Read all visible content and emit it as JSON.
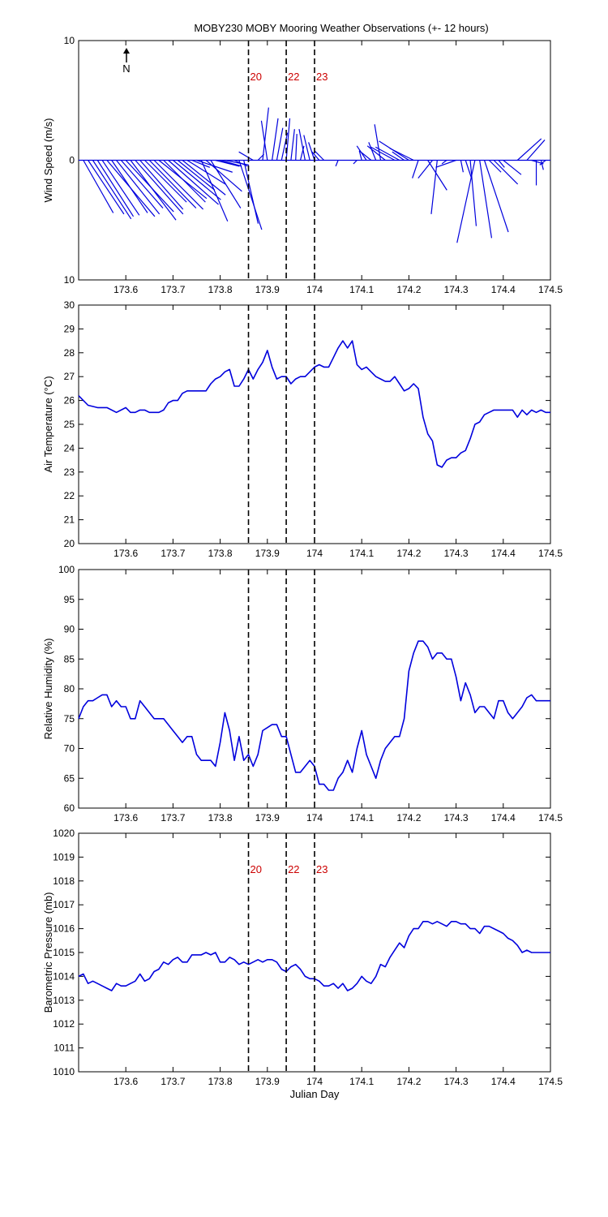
{
  "title": "MOBY230 MOBY Mooring Weather Observations (+- 12 hours)",
  "colors": {
    "series": "#0000dd",
    "markers": "#cc0000",
    "axes": "#000000"
  },
  "north_label": "N",
  "north_icon": "arrow-up-icon",
  "chart_data": [
    {
      "type": "line",
      "variant": "wind-stick",
      "ylabel": "Wind Speed (m/s)",
      "xlim": [
        173.5,
        174.5
      ],
      "ylim": [
        -10,
        10
      ],
      "yticklabels": [
        "10",
        "0",
        "10"
      ],
      "xticks": [
        173.6,
        173.7,
        173.8,
        173.9,
        174,
        174.1,
        174.2,
        174.3,
        174.4,
        174.5
      ],
      "grid": false,
      "markers": [
        {
          "x": 173.86,
          "label": "20"
        },
        {
          "x": 173.94,
          "label": "22"
        },
        {
          "x": 174.0,
          "label": "23"
        }
      ],
      "series": [
        {
          "x": [
            173.51,
            173.52,
            173.53,
            173.54,
            173.55,
            173.56,
            173.57,
            173.58,
            173.59,
            173.6,
            173.61,
            173.62,
            173.63,
            173.64,
            173.65,
            173.66,
            173.67,
            173.68,
            173.69,
            173.7,
            173.71,
            173.72,
            173.73,
            173.74,
            173.75,
            173.76,
            173.77,
            173.78,
            173.79,
            173.8,
            173.81,
            173.83,
            173.84,
            173.85,
            173.87,
            173.88,
            173.89,
            173.9,
            173.91,
            173.92,
            173.93,
            173.94,
            173.95,
            173.96,
            173.97,
            173.98,
            173.99,
            174.0,
            174.01,
            174.02,
            174.05,
            174.09,
            174.1,
            174.11,
            174.12,
            174.13,
            174.14,
            174.15,
            174.17,
            174.18,
            174.19,
            174.2,
            174.21,
            174.22,
            174.24,
            174.25,
            174.26,
            174.28,
            174.3,
            174.31,
            174.32,
            174.33,
            174.34,
            174.35,
            174.36,
            174.37,
            174.38,
            174.39,
            174.4,
            174.43,
            174.45,
            174.46,
            174.47,
            174.48,
            174.49
          ],
          "u": [
            2.5,
            3.0,
            3.2,
            3.0,
            3.1,
            4.0,
            3.0,
            3.6,
            3.5,
            4.0,
            3.8,
            4.0,
            3.6,
            3.5,
            3.9,
            4.1,
            4.0,
            3.5,
            4.2,
            4.0,
            3.1,
            3.6,
            3.2,
            1.5,
            3.0,
            2.2,
            3.0,
            2.5,
            2.0,
            1.8,
            2.0,
            1.1,
            1.9,
            1.2,
            -1.2,
            0.5,
            0.5,
            -0.5,
            0.5,
            0.5,
            0.5,
            0.3,
            0.3,
            0.1,
            0.3,
            -0.5,
            -0.5,
            -0.5,
            -0.6,
            -0.8,
            -0.2,
            -0.3,
            -0.2,
            -0.8,
            -1.0,
            -0.6,
            -0.5,
            -1.5,
            -2.0,
            -2.0,
            -1.0,
            -2.5,
            -2.0,
            -0.5,
            1.6,
            -1.2,
            -0.5,
            -0.4,
            -1.7,
            0.2,
            0.5,
            0.5,
            -1.5,
            1.0,
            2.0,
            1.0,
            2.0,
            0.5,
            1.5,
            2.0,
            1.5,
            1.0,
            0.0,
            0.2,
            -0.5
          ],
          "v": [
            -4.4,
            -4.5,
            -4.9,
            -4.7,
            -4.6,
            -4.7,
            -4.4,
            -4.5,
            -4.0,
            -4.3,
            -5.0,
            -4.5,
            -4.1,
            -3.5,
            -4.0,
            -4.1,
            -3.2,
            -3.5,
            -3.7,
            -3.3,
            -2.5,
            -2.9,
            -2.0,
            -0.6,
            -1.0,
            -5.1,
            -2.6,
            -4.0,
            -0.5,
            -0.5,
            -0.4,
            -0.5,
            -5.8,
            -5.3,
            0.7,
            0.5,
            4.4,
            3.3,
            3.5,
            2.7,
            2.3,
            3.5,
            2.6,
            2.2,
            1.2,
            2.6,
            2.1,
            1.5,
            0.7,
            0.8,
            -0.5,
            -0.3,
            0.8,
            1.2,
            0.8,
            1.5,
            3.0,
            1.2,
            1.1,
            1.1,
            0.7,
            1.6,
            1.0,
            -1.5,
            -2.5,
            -1.5,
            -4.5,
            -0.3,
            -0.6,
            -1.0,
            -1.5,
            -5.5,
            -6.9,
            -6.5,
            -6.0,
            -1.0,
            -2.0,
            -0.6,
            -1.2,
            1.8,
            1.7,
            -0.3,
            -2.1,
            -0.8,
            -0.4
          ]
        }
      ]
    },
    {
      "type": "line",
      "ylabel": "Air Temperature (°C)",
      "xlim": [
        173.5,
        174.5
      ],
      "ylim": [
        20,
        30
      ],
      "yticks": [
        20,
        21,
        22,
        23,
        24,
        25,
        26,
        27,
        28,
        29,
        30
      ],
      "xticks": [
        173.6,
        173.7,
        173.8,
        173.9,
        174,
        174.1,
        174.2,
        174.3,
        174.4,
        174.5
      ],
      "grid": false,
      "markers": [
        {
          "x": 173.86
        },
        {
          "x": 173.94
        },
        {
          "x": 174.0
        }
      ],
      "series": [
        {
          "x": [
            173.5,
            173.52,
            173.54,
            173.56,
            173.58,
            173.6,
            173.61,
            173.62,
            173.63,
            173.64,
            173.65,
            173.66,
            173.67,
            173.68,
            173.69,
            173.7,
            173.71,
            173.72,
            173.73,
            173.74,
            173.75,
            173.76,
            173.77,
            173.78,
            173.79,
            173.8,
            173.81,
            173.82,
            173.83,
            173.84,
            173.85,
            173.86,
            173.87,
            173.88,
            173.89,
            173.9,
            173.91,
            173.92,
            173.93,
            173.94,
            173.95,
            173.96,
            173.97,
            173.98,
            173.99,
            174.0,
            174.01,
            174.02,
            174.03,
            174.04,
            174.05,
            174.06,
            174.07,
            174.08,
            174.09,
            174.1,
            174.11,
            174.12,
            174.13,
            174.14,
            174.15,
            174.16,
            174.17,
            174.18,
            174.19,
            174.2,
            174.21,
            174.22,
            174.23,
            174.24,
            174.25,
            174.26,
            174.27,
            174.28,
            174.29,
            174.3,
            174.31,
            174.32,
            174.33,
            174.34,
            174.35,
            174.36,
            174.37,
            174.38,
            174.39,
            174.4,
            174.41,
            174.42,
            174.43,
            174.44,
            174.45,
            174.46,
            174.47,
            174.48,
            174.49,
            174.5
          ],
          "y": [
            26.2,
            25.8,
            25.7,
            25.7,
            25.5,
            25.7,
            25.5,
            25.5,
            25.6,
            25.6,
            25.5,
            25.5,
            25.5,
            25.6,
            25.9,
            26.0,
            26.0,
            26.3,
            26.4,
            26.4,
            26.4,
            26.4,
            26.4,
            26.7,
            26.9,
            27.0,
            27.2,
            27.3,
            26.6,
            26.6,
            26.9,
            27.3,
            26.9,
            27.3,
            27.6,
            28.1,
            27.4,
            26.9,
            27.0,
            27.0,
            26.7,
            26.9,
            27.0,
            27.0,
            27.2,
            27.4,
            27.5,
            27.4,
            27.4,
            27.8,
            28.2,
            28.5,
            28.2,
            28.5,
            27.5,
            27.3,
            27.4,
            27.2,
            27.0,
            26.9,
            26.8,
            26.8,
            27.0,
            26.7,
            26.4,
            26.5,
            26.7,
            26.5,
            25.3,
            24.6,
            24.3,
            23.3,
            23.2,
            23.5,
            23.6,
            23.6,
            23.8,
            23.9,
            24.4,
            25.0,
            25.1,
            25.4,
            25.5,
            25.6,
            25.6,
            25.6,
            25.6,
            25.6,
            25.3,
            25.6,
            25.4,
            25.6,
            25.5,
            25.6,
            25.5,
            25.5
          ]
        }
      ]
    },
    {
      "type": "line",
      "ylabel": "Relative Humidity (%)",
      "xlim": [
        173.5,
        174.5
      ],
      "ylim": [
        60,
        100
      ],
      "yticks": [
        60,
        65,
        70,
        75,
        80,
        85,
        90,
        95,
        100
      ],
      "xticks": [
        173.6,
        173.7,
        173.8,
        173.9,
        174,
        174.1,
        174.2,
        174.3,
        174.4,
        174.5
      ],
      "grid": false,
      "markers": [
        {
          "x": 173.86
        },
        {
          "x": 173.94
        },
        {
          "x": 174.0
        }
      ],
      "series": [
        {
          "x": [
            173.5,
            173.51,
            173.52,
            173.53,
            173.54,
            173.55,
            173.56,
            173.57,
            173.58,
            173.59,
            173.6,
            173.61,
            173.62,
            173.63,
            173.64,
            173.65,
            173.66,
            173.67,
            173.68,
            173.69,
            173.7,
            173.71,
            173.72,
            173.73,
            173.74,
            173.75,
            173.76,
            173.77,
            173.78,
            173.79,
            173.8,
            173.81,
            173.82,
            173.83,
            173.84,
            173.85,
            173.86,
            173.87,
            173.88,
            173.89,
            173.9,
            173.91,
            173.92,
            173.93,
            173.94,
            173.95,
            173.96,
            173.97,
            173.98,
            173.99,
            174.0,
            174.01,
            174.02,
            174.03,
            174.04,
            174.05,
            174.06,
            174.07,
            174.08,
            174.09,
            174.1,
            174.11,
            174.12,
            174.13,
            174.14,
            174.15,
            174.16,
            174.17,
            174.18,
            174.19,
            174.2,
            174.21,
            174.22,
            174.23,
            174.24,
            174.25,
            174.26,
            174.27,
            174.28,
            174.29,
            174.3,
            174.31,
            174.32,
            174.33,
            174.34,
            174.35,
            174.36,
            174.37,
            174.38,
            174.39,
            174.4,
            174.41,
            174.42,
            174.43,
            174.44,
            174.45,
            174.46,
            174.47,
            174.48,
            174.49,
            174.5
          ],
          "y": [
            75,
            77,
            78,
            78,
            78.5,
            79,
            79,
            77,
            78,
            77,
            77,
            75,
            75,
            78,
            77,
            76,
            75,
            75,
            75,
            74,
            73,
            72,
            71,
            72,
            72,
            69,
            68,
            68,
            68,
            67,
            71,
            76,
            73,
            68,
            72,
            68,
            69,
            67,
            69,
            73,
            73.5,
            74,
            74,
            72,
            72,
            69,
            66,
            66,
            67,
            68,
            67,
            64,
            64,
            63,
            63,
            65,
            66,
            68,
            66,
            70,
            73,
            69,
            67,
            65,
            68,
            70,
            71,
            72,
            72,
            75,
            83,
            86,
            88,
            88,
            87,
            85,
            86,
            86,
            85,
            85,
            82,
            78,
            81,
            79,
            76,
            77,
            77,
            76,
            75,
            78,
            78,
            76,
            75,
            76,
            77,
            78.5,
            79,
            78,
            78,
            78,
            78
          ]
        }
      ]
    },
    {
      "type": "line",
      "ylabel": "Barometric Pressure (mb)",
      "xlabel": "Julian Day",
      "xlim": [
        173.5,
        174.5
      ],
      "ylim": [
        1010,
        1020
      ],
      "yticks": [
        1010,
        1011,
        1012,
        1013,
        1014,
        1015,
        1016,
        1017,
        1018,
        1019,
        1020
      ],
      "xticks": [
        173.6,
        173.7,
        173.8,
        173.9,
        174,
        174.1,
        174.2,
        174.3,
        174.4,
        174.5
      ],
      "grid": false,
      "markers": [
        {
          "x": 173.86,
          "label": "20"
        },
        {
          "x": 173.94,
          "label": "22"
        },
        {
          "x": 174.0,
          "label": "23"
        }
      ],
      "series": [
        {
          "x": [
            173.5,
            173.51,
            173.52,
            173.53,
            173.54,
            173.55,
            173.56,
            173.57,
            173.58,
            173.59,
            173.6,
            173.61,
            173.62,
            173.63,
            173.64,
            173.65,
            173.66,
            173.67,
            173.68,
            173.69,
            173.7,
            173.71,
            173.72,
            173.73,
            173.74,
            173.75,
            173.76,
            173.77,
            173.78,
            173.79,
            173.8,
            173.81,
            173.82,
            173.83,
            173.84,
            173.85,
            173.86,
            173.87,
            173.88,
            173.89,
            173.9,
            173.91,
            173.92,
            173.93,
            173.94,
            173.95,
            173.96,
            173.97,
            173.98,
            173.99,
            174.0,
            174.01,
            174.02,
            174.03,
            174.04,
            174.05,
            174.06,
            174.07,
            174.08,
            174.09,
            174.1,
            174.11,
            174.12,
            174.13,
            174.14,
            174.15,
            174.16,
            174.17,
            174.18,
            174.19,
            174.2,
            174.21,
            174.22,
            174.23,
            174.24,
            174.25,
            174.26,
            174.27,
            174.28,
            174.29,
            174.3,
            174.31,
            174.32,
            174.33,
            174.34,
            174.35,
            174.36,
            174.37,
            174.38,
            174.39,
            174.4,
            174.41,
            174.42,
            174.43,
            174.44,
            174.45,
            174.46,
            174.47,
            174.48,
            174.49,
            174.5
          ],
          "y": [
            1014.0,
            1014.1,
            1013.7,
            1013.8,
            1013.7,
            1013.6,
            1013.5,
            1013.4,
            1013.7,
            1013.6,
            1013.6,
            1013.7,
            1013.8,
            1014.1,
            1013.8,
            1013.9,
            1014.2,
            1014.3,
            1014.6,
            1014.5,
            1014.7,
            1014.8,
            1014.6,
            1014.6,
            1014.9,
            1014.9,
            1014.9,
            1015.0,
            1014.9,
            1015.0,
            1014.6,
            1014.6,
            1014.8,
            1014.7,
            1014.5,
            1014.6,
            1014.5,
            1014.6,
            1014.7,
            1014.6,
            1014.7,
            1014.7,
            1014.6,
            1014.3,
            1014.2,
            1014.4,
            1014.5,
            1014.3,
            1014.0,
            1013.9,
            1013.9,
            1013.8,
            1013.6,
            1013.6,
            1013.7,
            1013.5,
            1013.7,
            1013.4,
            1013.5,
            1013.7,
            1014.0,
            1013.8,
            1013.7,
            1014.0,
            1014.5,
            1014.4,
            1014.8,
            1015.1,
            1015.4,
            1015.2,
            1015.7,
            1016.0,
            1016.0,
            1016.3,
            1016.3,
            1016.2,
            1016.3,
            1016.2,
            1016.1,
            1016.3,
            1016.3,
            1016.2,
            1016.2,
            1016.0,
            1016.0,
            1015.8,
            1016.1,
            1016.1,
            1016.0,
            1015.9,
            1015.8,
            1015.6,
            1015.5,
            1015.3,
            1015.0,
            1015.1,
            1015.0,
            1015.0,
            1015.0,
            1015.0,
            1015.0
          ]
        }
      ]
    }
  ]
}
